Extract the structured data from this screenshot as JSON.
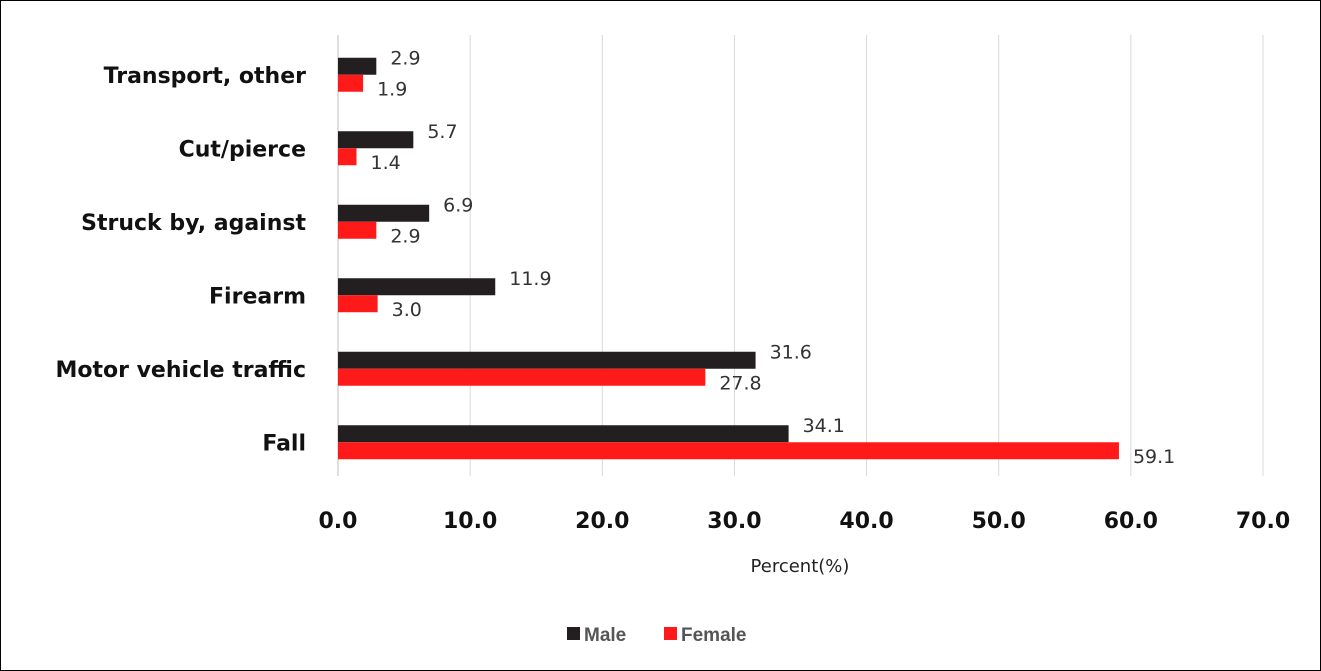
{
  "chart_data": {
    "type": "bar",
    "orientation": "horizontal",
    "categories": [
      "Transport, other",
      "Cut/pierce",
      "Struck by, against",
      "Firearm",
      "Motor vehicle traffic",
      "Fall"
    ],
    "series": [
      {
        "name": "Male",
        "color": "#231f20",
        "values": [
          2.9,
          5.7,
          6.9,
          11.9,
          31.6,
          34.1
        ],
        "labels": [
          "2.9",
          "5.7",
          "6.9",
          "11.9",
          "31.6",
          "34.1"
        ]
      },
      {
        "name": "Female",
        "color": "#ff1a1a",
        "values": [
          1.9,
          1.4,
          2.9,
          3.0,
          27.8,
          59.1
        ],
        "labels": [
          "1.9",
          "1.4",
          "2.9",
          "3.0",
          "27.8",
          "59.1"
        ]
      }
    ],
    "xlim": [
      0,
      70
    ],
    "xticks": [
      "0.0",
      "10.0",
      "20.0",
      "30.0",
      "40.0",
      "50.0",
      "60.0",
      "70.0"
    ],
    "xlabel": "Percent(%)",
    "ylabel": "",
    "title": "",
    "grid": "vertical",
    "legend": {
      "position": "bottom",
      "entries": [
        "Male",
        "Female"
      ]
    }
  }
}
